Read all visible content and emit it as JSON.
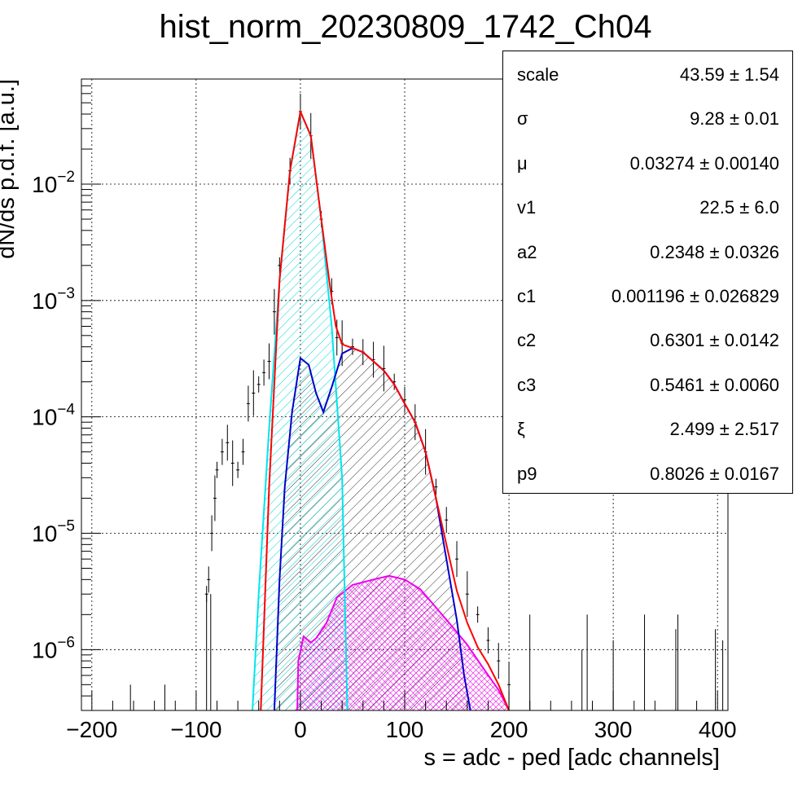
{
  "chart_data": {
    "type": "line",
    "title": "hist_norm_20230809_1742_Ch04",
    "xlabel": "s = adc - ped [adc channels]",
    "ylabel": "dN/ds p.d.f. [a.u.]",
    "xlim": [
      -210,
      410
    ],
    "ylim": [
      3e-07,
      0.08
    ],
    "yscale": "log",
    "grid": true,
    "x_ticks": [
      -200,
      -100,
      0,
      100,
      200,
      300,
      400
    ],
    "y_ticks": [
      {
        "value": 1e-06,
        "mantissa": "10",
        "exp": "−6"
      },
      {
        "value": 1e-05,
        "mantissa": "10",
        "exp": "−5"
      },
      {
        "value": 0.0001,
        "mantissa": "10",
        "exp": "−4"
      },
      {
        "value": 0.001,
        "mantissa": "10",
        "exp": "−3"
      },
      {
        "value": 0.01,
        "mantissa": "10",
        "exp": "−2"
      }
    ],
    "series": [
      {
        "color": "#ff0000",
        "points": [
          [
            -38,
            3e-07
          ],
          [
            -30,
            2.5e-05
          ],
          [
            -20,
            0.0015
          ],
          [
            -10,
            0.013
          ],
          [
            0,
            0.042
          ],
          [
            10,
            0.026
          ],
          [
            20,
            0.005
          ],
          [
            28,
            0.0014
          ],
          [
            34,
            0.0006
          ],
          [
            40,
            0.00042
          ],
          [
            50,
            0.00039
          ],
          [
            60,
            0.00036
          ],
          [
            70,
            0.0003
          ],
          [
            80,
            0.00025
          ],
          [
            90,
            0.00019
          ],
          [
            100,
            0.00013
          ],
          [
            110,
            9e-05
          ],
          [
            120,
            5e-05
          ],
          [
            130,
            2e-05
          ],
          [
            140,
            8e-06
          ],
          [
            150,
            3.2e-06
          ],
          [
            160,
            1.7e-06
          ],
          [
            170,
            1.05e-06
          ],
          [
            180,
            7.5e-07
          ],
          [
            190,
            5e-07
          ],
          [
            200,
            3e-07
          ]
        ]
      },
      {
        "color": "#00e5ee",
        "fill": "hatch-cyan",
        "points": [
          [
            -46,
            3e-07
          ],
          [
            -40,
            3e-06
          ],
          [
            -30,
            8e-05
          ],
          [
            -20,
            0.0015
          ],
          [
            -10,
            0.013
          ],
          [
            0,
            0.042
          ],
          [
            10,
            0.026
          ],
          [
            20,
            0.005
          ],
          [
            30,
            0.0006
          ],
          [
            40,
            3e-05
          ],
          [
            45,
            3e-07
          ]
        ]
      },
      {
        "color": "#0000cc",
        "fill": "hatch-black",
        "points": [
          [
            -25,
            3e-07
          ],
          [
            -20,
            4e-06
          ],
          [
            -15,
            2.5e-05
          ],
          [
            -8,
            0.00011
          ],
          [
            0,
            0.00032
          ],
          [
            8,
            0.00028
          ],
          [
            15,
            0.00016
          ],
          [
            22,
            0.00011
          ],
          [
            30,
            0.00018
          ],
          [
            40,
            0.00035
          ],
          [
            50,
            0.00039
          ],
          [
            60,
            0.00036
          ],
          [
            70,
            0.0003
          ],
          [
            80,
            0.00025
          ],
          [
            90,
            0.00019
          ],
          [
            100,
            0.00013
          ],
          [
            110,
            9e-05
          ],
          [
            120,
            5e-05
          ],
          [
            130,
            2e-05
          ],
          [
            140,
            6e-06
          ],
          [
            150,
            1.8e-06
          ],
          [
            157,
            6e-07
          ],
          [
            163,
            3e-07
          ]
        ]
      },
      {
        "color": "#ee00ee",
        "fill": "hatch-pink",
        "points": [
          [
            -3,
            3e-07
          ],
          [
            -2,
            8e-07
          ],
          [
            3,
            1.3e-06
          ],
          [
            10,
            1.15e-06
          ],
          [
            15,
            1.25e-06
          ],
          [
            25,
            1.7e-06
          ],
          [
            35,
            2.8e-06
          ],
          [
            50,
            3.6e-06
          ],
          [
            70,
            4e-06
          ],
          [
            85,
            4.3e-06
          ],
          [
            100,
            4e-06
          ],
          [
            115,
            3.3e-06
          ],
          [
            130,
            2.3e-06
          ],
          [
            145,
            1.6e-06
          ],
          [
            160,
            1.1e-06
          ],
          [
            175,
            7e-07
          ],
          [
            190,
            4.5e-07
          ],
          [
            200,
            3e-07
          ]
        ]
      }
    ],
    "histogram_points": [
      [
        -90,
        3e-06
      ],
      [
        -88,
        4e-06
      ],
      [
        -85,
        1e-05
      ],
      [
        -82,
        2e-05
      ],
      [
        -80,
        3.5e-05
      ],
      [
        -75,
        5e-05
      ],
      [
        -70,
        6e-05
      ],
      [
        -65,
        4e-05
      ],
      [
        -60,
        3.5e-05
      ],
      [
        -55,
        5e-05
      ],
      [
        -50,
        0.00013
      ],
      [
        -45,
        0.00016
      ],
      [
        -40,
        0.00019
      ],
      [
        -35,
        0.00024
      ],
      [
        -30,
        0.0003
      ],
      [
        -25,
        0.0008
      ],
      [
        -20,
        0.002
      ],
      [
        -10,
        0.013
      ],
      [
        0,
        0.042
      ],
      [
        10,
        0.026
      ],
      [
        20,
        0.005
      ],
      [
        30,
        0.0012
      ],
      [
        35,
        0.00048
      ],
      [
        40,
        0.00043
      ],
      [
        50,
        0.0004
      ],
      [
        60,
        0.00036
      ],
      [
        70,
        0.00031
      ],
      [
        80,
        0.00026
      ],
      [
        90,
        0.0002
      ],
      [
        100,
        0.00014
      ],
      [
        110,
        9e-05
      ],
      [
        120,
        5e-05
      ],
      [
        130,
        2.5e-05
      ],
      [
        140,
        1.3e-05
      ],
      [
        150,
        6e-06
      ],
      [
        160,
        3e-06
      ],
      [
        170,
        2e-06
      ],
      [
        180,
        1.2e-06
      ],
      [
        190,
        8e-07
      ],
      [
        200,
        5e-07
      ]
    ],
    "sparse_spikes": [
      [
        -163,
        5e-07
      ],
      [
        -130,
        5e-07
      ],
      [
        -90,
        3e-06
      ],
      [
        -86,
        3e-06
      ],
      [
        220,
        2e-06
      ],
      [
        270,
        1e-06
      ],
      [
        275,
        2e-06
      ],
      [
        300,
        1.2e-06
      ],
      [
        330,
        2e-06
      ],
      [
        360,
        1.5e-06
      ],
      [
        362,
        2e-06
      ],
      [
        398,
        1.5e-06
      ],
      [
        405,
        1.2e-06
      ]
    ]
  },
  "stats_box": {
    "rows": [
      {
        "name": "scale",
        "value": "43.59 ± 1.54"
      },
      {
        "name": "σ",
        "value": "9.28 ± 0.01"
      },
      {
        "name": "μ",
        "value": "0.03274 ± 0.00140"
      },
      {
        "name": "v1",
        "value": "22.5 ± 6.0"
      },
      {
        "name": "a2",
        "value": "0.2348 ± 0.0326"
      },
      {
        "name": "c1",
        "value": "0.001196 ± 0.026829"
      },
      {
        "name": "c2",
        "value": "0.6301 ± 0.0142"
      },
      {
        "name": "c3",
        "value": "0.5461 ± 0.0060"
      },
      {
        "name": "ξ",
        "value": "2.499 ± 2.517"
      },
      {
        "name": "p9",
        "value": "0.8026 ± 0.0167"
      }
    ]
  }
}
